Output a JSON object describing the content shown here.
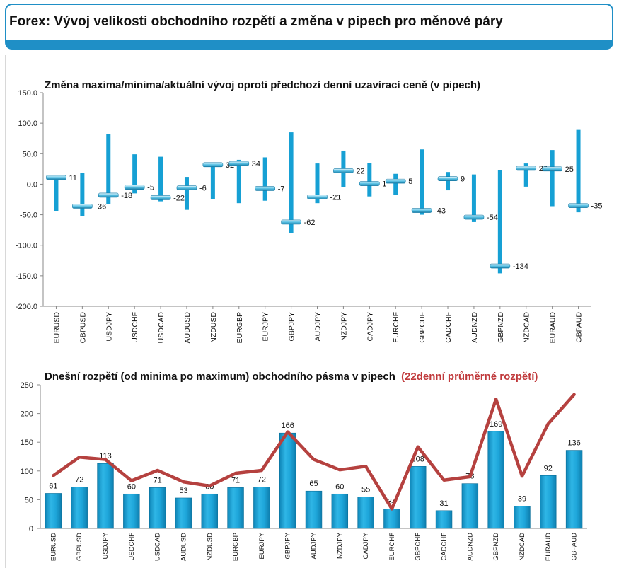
{
  "header": {
    "title": "Forex: Vývoj velikosti obchodního rozpětí a změna v pipech pro měnové páry"
  },
  "colors": {
    "accent": "#1f8fc6",
    "bar": "#16a0d4",
    "line": "#b5413f",
    "marker": "#5cc3e6"
  },
  "chart_data": [
    {
      "type": "bar",
      "title": "Změna maxima/minima/aktuální vývoj oproti předchozí denní uzavírací ceně (v pipech)",
      "categories": [
        "EURUSD",
        "GBPUSD",
        "USDJPY",
        "USDCHF",
        "USDCAD",
        "AUDUSD",
        "NZDUSD",
        "EURGBP",
        "EURJPY",
        "GBPJPY",
        "AUDJPY",
        "NZDJPY",
        "CADJPY",
        "EURCHF",
        "GBPCHF",
        "CADCHF",
        "AUDNZD",
        "GBPNZD",
        "NZDCAD",
        "EURAUD",
        "GBPAUD"
      ],
      "high": [
        15,
        19,
        82,
        49,
        45,
        12,
        35,
        40,
        44,
        85,
        34,
        55,
        35,
        17,
        57,
        20,
        16,
        23,
        34,
        56,
        89
      ],
      "low": [
        -44,
        -52,
        -32,
        -15,
        -28,
        -42,
        -24,
        -31,
        -27,
        -80,
        -31,
        -5,
        -20,
        -17,
        -50,
        -10,
        -62,
        -146,
        -4,
        -36,
        -46
      ],
      "current": [
        11,
        -36,
        -18,
        -5,
        -22,
        -6,
        32,
        34,
        -7,
        -62,
        -21,
        22,
        1,
        5,
        -43,
        9,
        -54,
        -134,
        26,
        25,
        -35
      ],
      "ylim": [
        -200,
        150
      ],
      "yticks": [
        "150.0",
        "100.0",
        "50.0",
        "0.0",
        "-50.0",
        "-100.0",
        "-150.0",
        "-200.0"
      ]
    },
    {
      "type": "bar",
      "title": "Dnešní rozpětí (od minima po maximum) obchodního pásma v pipech",
      "title_extra": "(22denní průměrné rozpětí)",
      "categories": [
        "EURUSD",
        "GBPUSD",
        "USDJPY",
        "USDCHF",
        "USDCAD",
        "AUDUSD",
        "NZDUSD",
        "EURGBP",
        "EURJPY",
        "GBPJPY",
        "AUDJPY",
        "NZDJPY",
        "CADJPY",
        "EURCHF",
        "GBPCHF",
        "CADCHF",
        "AUDNZD",
        "GBPNZD",
        "NZDCAD",
        "EURAUD",
        "GBPAUD"
      ],
      "values": [
        61,
        72,
        113,
        60,
        71,
        53,
        60,
        71,
        72,
        166,
        65,
        60,
        55,
        34,
        108,
        31,
        78,
        169,
        39,
        92,
        136
      ],
      "avg": [
        92,
        124,
        120,
        83,
        101,
        81,
        74,
        96,
        101,
        168,
        120,
        102,
        108,
        34,
        142,
        84,
        90,
        225,
        91,
        182,
        233
      ],
      "ylim": [
        0,
        250
      ],
      "yticks": [
        "250",
        "200",
        "150",
        "100",
        "50",
        "0"
      ]
    }
  ]
}
